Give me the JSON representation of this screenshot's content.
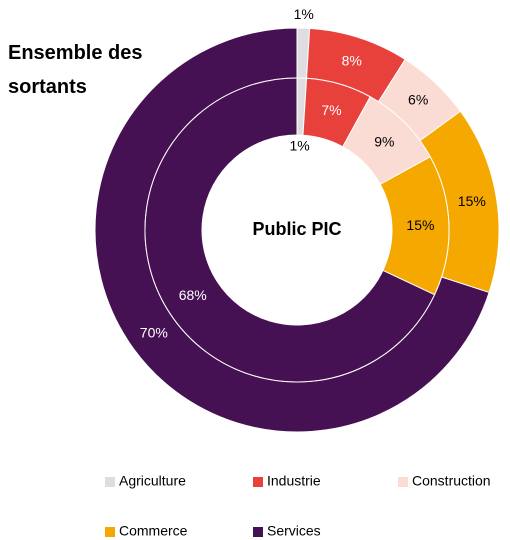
{
  "chart_data": {
    "type": "donut",
    "categories": [
      "Agriculture",
      "Industrie",
      "Construction",
      "Commerce",
      "Services"
    ],
    "colors": [
      "#e0dde0",
      "#e8413c",
      "#fbdcd5",
      "#f5a800",
      "#461152"
    ],
    "series": [
      {
        "name": "Ensemble des sortants",
        "ring": "outer",
        "values": [
          1,
          8,
          6,
          15,
          70
        ],
        "value_labels": [
          "1%",
          "8%",
          "6%",
          "15%",
          "70%"
        ]
      },
      {
        "name": "Public PIC",
        "ring": "inner",
        "values": [
          1,
          7,
          9,
          15,
          68
        ],
        "value_labels": [
          "1%",
          "7%",
          "9%",
          "15%",
          "68%"
        ]
      }
    ]
  }
}
